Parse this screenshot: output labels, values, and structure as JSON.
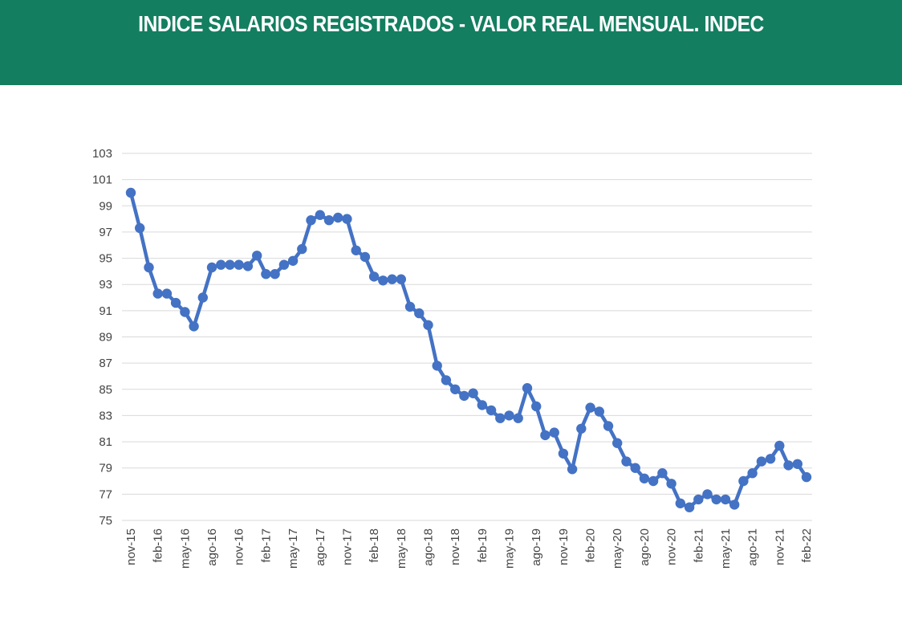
{
  "header": {
    "title": "INDICE SALARIOS REGISTRADOS - VALOR REAL MENSUAL. INDEC"
  },
  "colors": {
    "banner": "#137e60",
    "series": "#4472c4",
    "grid": "#d9d9d9"
  },
  "chart_data": {
    "type": "line",
    "title": "INDICE SALARIOS REGISTRADOS - VALOR REAL MENSUAL. INDEC",
    "xlabel": "",
    "ylabel": "",
    "ylim": [
      75,
      103
    ],
    "yticks": [
      75,
      77,
      79,
      81,
      83,
      85,
      87,
      89,
      91,
      93,
      95,
      97,
      99,
      101,
      103
    ],
    "grid": true,
    "legend": "none",
    "categories": [
      "nov-15",
      "dic-15",
      "ene-16",
      "feb-16",
      "mar-16",
      "abr-16",
      "may-16",
      "jun-16",
      "jul-16",
      "ago-16",
      "sep-16",
      "oct-16",
      "nov-16",
      "dic-16",
      "ene-17",
      "feb-17",
      "mar-17",
      "abr-17",
      "may-17",
      "jun-17",
      "jul-17",
      "ago-17",
      "sep-17",
      "oct-17",
      "nov-17",
      "dic-17",
      "ene-18",
      "feb-18",
      "mar-18",
      "abr-18",
      "may-18",
      "jun-18",
      "jul-18",
      "ago-18",
      "sep-18",
      "oct-18",
      "nov-18",
      "dic-18",
      "ene-19",
      "feb-19",
      "mar-19",
      "abr-19",
      "may-19",
      "jun-19",
      "jul-19",
      "ago-19",
      "sep-19",
      "oct-19",
      "nov-19",
      "dic-19",
      "ene-20",
      "feb-20",
      "mar-20",
      "abr-20",
      "may-20",
      "jun-20",
      "jul-20",
      "ago-20",
      "sep-20",
      "oct-20",
      "nov-20",
      "dic-20",
      "ene-21",
      "feb-21",
      "mar-21",
      "abr-21",
      "may-21",
      "jun-21",
      "jul-21",
      "ago-21",
      "sep-21",
      "oct-21",
      "nov-21",
      "dic-21",
      "ene-22",
      "feb-22"
    ],
    "xtick_labels": [
      "nov-15",
      "feb-16",
      "may-16",
      "ago-16",
      "nov-16",
      "feb-17",
      "may-17",
      "ago-17",
      "nov-17",
      "feb-18",
      "may-18",
      "ago-18",
      "nov-18",
      "feb-19",
      "may-19",
      "ago-19",
      "nov-19",
      "feb-20",
      "may-20",
      "ago-20",
      "nov-20",
      "feb-21",
      "may-21",
      "ago-21",
      "nov-21",
      "feb-22"
    ],
    "series": [
      {
        "name": "Índice salarios registrados (valor real)",
        "values": [
          100.0,
          97.3,
          94.3,
          92.3,
          92.3,
          91.6,
          90.9,
          89.8,
          92.0,
          94.3,
          94.5,
          94.5,
          94.5,
          94.4,
          95.2,
          93.8,
          93.8,
          94.5,
          94.8,
          95.7,
          97.9,
          98.3,
          97.9,
          98.1,
          98.0,
          95.6,
          95.1,
          93.6,
          93.3,
          93.4,
          93.4,
          91.3,
          90.8,
          89.9,
          86.8,
          85.7,
          85.0,
          84.5,
          84.7,
          83.8,
          83.4,
          82.8,
          83.0,
          82.8,
          85.1,
          83.7,
          81.5,
          81.7,
          80.1,
          78.9,
          82.0,
          83.6,
          83.3,
          82.2,
          80.9,
          79.5,
          79.0,
          78.2,
          78.0,
          78.6,
          77.8,
          76.3,
          76.0,
          76.6,
          77.0,
          76.6,
          76.6,
          76.2,
          78.0,
          78.6,
          79.5,
          79.7,
          80.7,
          79.2,
          79.3,
          78.3
        ]
      }
    ]
  }
}
